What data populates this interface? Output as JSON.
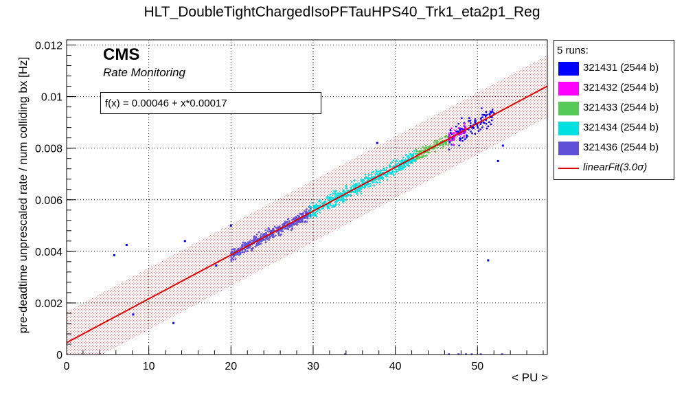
{
  "chart_data": {
    "type": "scatter",
    "title": "HLT_DoubleTightChargedIsoPFTauHPS40_Trk1_eta2p1_Reg",
    "xlabel": "< PU >",
    "ylabel": "pre-deadtime unprescaled rate / num colliding bx [Hz]",
    "xlim": [
      0,
      58.5
    ],
    "ylim": [
      0,
      0.0122
    ],
    "x_ticks": [
      0,
      10,
      20,
      30,
      40,
      50
    ],
    "x_tick_labels": [
      "0",
      "10",
      "20",
      "30",
      "40",
      "50"
    ],
    "y_ticks": [
      0,
      0.002,
      0.004,
      0.006,
      0.008,
      0.01,
      0.012
    ],
    "y_tick_labels": [
      "0",
      "0.002",
      "0.004",
      "0.006",
      "0.008",
      "0.01",
      "0.012"
    ],
    "grid": true,
    "legend_placement": "right",
    "legend_header": "5 runs:",
    "series": [
      {
        "name": "321431 (2544 b)",
        "color": "#0000ff",
        "x_range": [
          46.5,
          52.0
        ],
        "y_center": 0.0087,
        "y_spread": 0.0008,
        "count": 130,
        "outliers": [
          [
            5.8,
            0.00385
          ],
          [
            7.3,
            0.00425
          ],
          [
            8.1,
            0.00155
          ],
          [
            13.0,
            0.00122
          ],
          [
            14.4,
            0.0044
          ],
          [
            18.2,
            0.00345
          ],
          [
            20.0,
            0.005
          ],
          [
            37.8,
            0.0082
          ],
          [
            51.3,
            0.00365
          ],
          [
            53.1,
            0.0081
          ],
          [
            52.5,
            0.0075
          ],
          [
            33.9,
            0.0
          ],
          [
            46.5,
            0.0
          ],
          [
            47.7,
            0.0
          ],
          [
            48.6,
            0.0
          ],
          [
            49.3,
            0.0
          ],
          [
            50.4,
            0.0
          ],
          [
            53.0,
            0.0
          ]
        ]
      },
      {
        "name": "321432 (2544 b)",
        "color": "#ff00ff",
        "x_range": [
          46.5,
          48.6
        ],
        "y_center": 0.0085,
        "y_spread": 0.0006,
        "count": 40,
        "outliers": []
      },
      {
        "name": "321433 (2544 b)",
        "color": "#55c855",
        "x_range": [
          42.5,
          46.8
        ],
        "y_center": 0.0077,
        "y_spread": 0.0005,
        "count": 140,
        "outliers": []
      },
      {
        "name": "321434 (2544 b)",
        "color": "#00e0e0",
        "x_range": [
          29.5,
          42.5
        ],
        "y_center": 0.0063,
        "y_spread": 0.0006,
        "count": 500,
        "outliers": []
      },
      {
        "name": "321436 (2544 b)",
        "color": "#6050d8",
        "x_range": [
          20.0,
          29.8
        ],
        "y_center": 0.0045,
        "y_spread": 0.0005,
        "count": 450,
        "outliers": []
      }
    ],
    "fit": {
      "legend_name": "linearFit(3.0σ)",
      "label": "f(x) = 0.00046 + x*0.00017",
      "intercept": 0.00046,
      "slope": 0.00017,
      "band_sigma_abs": 0.0012,
      "color": "#dd0000"
    },
    "annotations": {
      "experiment": "CMS",
      "subtitle": "Rate Monitoring"
    }
  }
}
